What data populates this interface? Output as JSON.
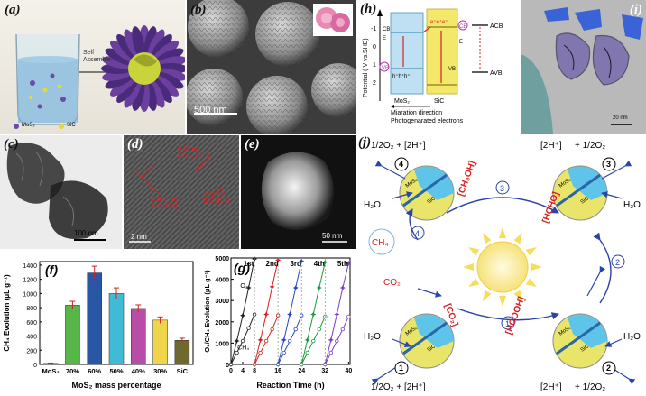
{
  "panels": {
    "a": {
      "label": "(a)",
      "arrow_text": [
        "Self",
        "Assemble"
      ],
      "legend": [
        "MoS₂",
        "SiC"
      ]
    },
    "b": {
      "label": "(b)",
      "scale": "500 nm"
    },
    "c": {
      "label": "(c)",
      "scale": "100 nm"
    },
    "d": {
      "label": "(d)",
      "scale": "2 nm",
      "annotations": [
        {
          "d": "0.62 nm",
          "hkl": "MoS₂ (002)"
        },
        {
          "d": "0.266 nm",
          "hkl": "SiC (102)"
        },
        {
          "d": "0.25 nm",
          "hkl": "SiC (101)"
        }
      ]
    },
    "e": {
      "label": "(e)",
      "scale": "50 nm"
    },
    "h": {
      "label": "(h)",
      "ylabel": "Potential ( V vs.SHE)",
      "ticks": [
        "-1",
        "0",
        "1",
        "2"
      ],
      "cb": "CB",
      "vb": "VB",
      "ef": "E",
      "mos2": "MoS₂",
      "sic": "SiC",
      "electrons": "e⁺e⁺e⁺",
      "holes": "h⁺h⁺h⁺",
      "acb": "ACB",
      "avb": "AVB",
      "caption": [
        "Miaration direction",
        "Photogenarated electrons"
      ]
    },
    "i": {
      "label": "(i)",
      "scale": "20 nm"
    },
    "j": {
      "label": "(j)"
    }
  },
  "mechanism": {
    "steps": [
      "1",
      "2",
      "3",
      "4"
    ],
    "co2": "CO₂",
    "ch4": "CH₄",
    "h2o": "H₂O",
    "co2ad": "[CO₂]",
    "hcooh": "[HCOOH]",
    "hcho": "[HCHO]",
    "ch3oh": "[CH₃OH]",
    "ad": "ad",
    "oxidation": "1/2O₂ + [2H⁺]",
    "oxidation_rev": "[2H⁺]",
    "half_o2": " + 1/2O₂",
    "particle_labels": {
      "mos2": "MoS₂",
      "sic": "SiC"
    }
  },
  "chart_data": [
    {
      "type": "bar",
      "panel": "(f)",
      "categories": [
        "MoS₂",
        "70%",
        "60%",
        "50%",
        "40%",
        "30%",
        "SiC"
      ],
      "values": [
        15,
        835,
        1290,
        1000,
        790,
        625,
        340
      ],
      "errors": [
        5,
        55,
        95,
        80,
        50,
        45,
        30
      ],
      "colors": [
        "#d9242a",
        "#56b648",
        "#2a56a6",
        "#3fbbd6",
        "#b84ca8",
        "#f0d44a",
        "#6e6a2e"
      ],
      "ylabel": "CH₄ Evolution (μL g⁻¹)",
      "xlabel": "MoS₂ mass percentage",
      "yticks": [
        0,
        200,
        400,
        600,
        800,
        1000,
        1200,
        1400
      ],
      "ylim": [
        0,
        1450
      ]
    },
    {
      "type": "line",
      "panel": "(g)",
      "ylabel": "O₂/CH₄ Evolution (μL g⁻¹)",
      "xlabel": "Reaction Time (h)",
      "xticks": [
        0,
        4,
        8,
        16,
        24,
        32,
        40
      ],
      "yticks": [
        0,
        1000,
        2000,
        3000,
        4000,
        5000
      ],
      "xlim": [
        0,
        40.5
      ],
      "ylim": [
        0,
        5000
      ],
      "cycle_labels": [
        "1st",
        "2nd",
        "3rd",
        "4th",
        "5th"
      ],
      "cycle_label_x": [
        6,
        14,
        22,
        30,
        38
      ],
      "series_labels": [
        "O₂",
        "CH₄"
      ],
      "cycles": [
        {
          "color": "#222222",
          "o2": {
            "x": [
              0,
              2,
              4,
              6,
              8
            ],
            "y": [
              0,
              1100,
              2300,
              3600,
              4950
            ]
          },
          "ch4": {
            "x": [
              0,
              2,
              4,
              6,
              8
            ],
            "y": [
              0,
              550,
              1100,
              1700,
              2350
            ]
          }
        },
        {
          "color": "#d42020",
          "o2": {
            "x": [
              8,
              10,
              12,
              14,
              16
            ],
            "y": [
              0,
              1150,
              2350,
              3650,
              4900
            ]
          },
          "ch4": {
            "x": [
              8,
              10,
              12,
              14,
              16
            ],
            "y": [
              0,
              550,
              1100,
              1650,
              2300
            ]
          }
        },
        {
          "color": "#2a44c0",
          "o2": {
            "x": [
              16,
              18,
              20,
              22,
              24
            ],
            "y": [
              0,
              1150,
              2350,
              3600,
              4850
            ]
          },
          "ch4": {
            "x": [
              16,
              18,
              20,
              22,
              24
            ],
            "y": [
              0,
              550,
              1100,
              1650,
              2300
            ]
          }
        },
        {
          "color": "#1a9a3a",
          "o2": {
            "x": [
              24,
              26,
              28,
              30,
              32
            ],
            "y": [
              0,
              1150,
              2350,
              3600,
              4800
            ]
          },
          "ch4": {
            "x": [
              24,
              26,
              28,
              30,
              32
            ],
            "y": [
              0,
              550,
              1100,
              1650,
              2250
            ]
          }
        },
        {
          "color": "#7a3fc2",
          "o2": {
            "x": [
              32,
              34,
              36,
              38,
              40
            ],
            "y": [
              0,
              1150,
              2350,
              3600,
              4750
            ]
          },
          "ch4": {
            "x": [
              32,
              34,
              36,
              38,
              40
            ],
            "y": [
              0,
              550,
              1100,
              1650,
              2250
            ]
          }
        }
      ]
    }
  ]
}
